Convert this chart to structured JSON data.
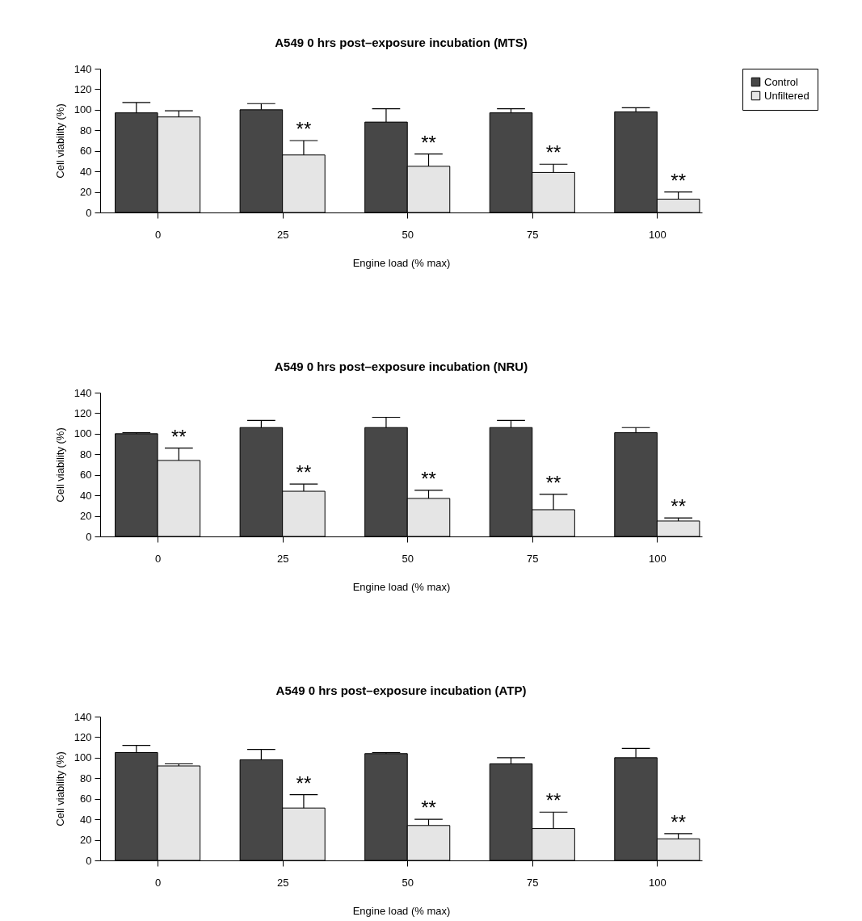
{
  "chart_data": [
    {
      "type": "bar",
      "title": "A549 0 hrs post–exposure incubation (MTS)",
      "xlabel": "Engine load (% max)",
      "ylabel": "Cell viability (%)",
      "categories": [
        "0",
        "25",
        "50",
        "75",
        "100"
      ],
      "ylim": [
        0,
        140
      ],
      "yticks": [
        0,
        20,
        40,
        60,
        80,
        100,
        120,
        140
      ],
      "legend": "right",
      "grid": false,
      "series": [
        {
          "name": "Control",
          "color": "#474747",
          "values": [
            97,
            100,
            88,
            97,
            98
          ],
          "errors": [
            [
              97,
              107
            ],
            [
              100,
              106
            ],
            [
              88,
              101
            ],
            [
              97,
              101
            ],
            [
              98,
              102
            ]
          ]
        },
        {
          "name": "Unfiltered",
          "color": "#e5e5e5",
          "values": [
            93,
            56,
            45,
            39,
            13
          ],
          "errors": [
            [
              93,
              99
            ],
            [
              56,
              70
            ],
            [
              45,
              57
            ],
            [
              39,
              47
            ],
            [
              13,
              20
            ]
          ]
        }
      ],
      "annotations": [
        {
          "text": "**",
          "x": "25",
          "y": 70
        },
        {
          "text": "**",
          "x": "50",
          "y": 57
        },
        {
          "text": "**",
          "x": "75",
          "y": 47
        },
        {
          "text": "**",
          "x": "100",
          "y": 20
        }
      ]
    },
    {
      "type": "bar",
      "title": "A549 0 hrs post–exposure incubation (NRU)",
      "xlabel": "Engine load (% max)",
      "ylabel": "Cell viability (%)",
      "categories": [
        "0",
        "25",
        "50",
        "75",
        "100"
      ],
      "ylim": [
        0,
        140
      ],
      "yticks": [
        0,
        20,
        40,
        60,
        80,
        100,
        120,
        140
      ],
      "legend": "right",
      "grid": false,
      "series": [
        {
          "name": "Control",
          "color": "#474747",
          "values": [
            100,
            106,
            106,
            106,
            101
          ],
          "errors": [
            [
              100,
              101
            ],
            [
              106,
              113
            ],
            [
              106,
              116
            ],
            [
              106,
              113
            ],
            [
              101,
              106
            ]
          ]
        },
        {
          "name": "Unfiltered",
          "color": "#e5e5e5",
          "values": [
            74,
            44,
            37,
            26,
            15
          ],
          "errors": [
            [
              74,
              86
            ],
            [
              44,
              51
            ],
            [
              37,
              45
            ],
            [
              26,
              41
            ],
            [
              15,
              18
            ]
          ]
        }
      ],
      "annotations": [
        {
          "text": "**",
          "x": "0",
          "y": 86
        },
        {
          "text": "**",
          "x": "25",
          "y": 51
        },
        {
          "text": "**",
          "x": "50",
          "y": 45
        },
        {
          "text": "**",
          "x": "75",
          "y": 41
        },
        {
          "text": "**",
          "x": "100",
          "y": 18
        }
      ]
    },
    {
      "type": "bar",
      "title": "A549 0 hrs post–exposure incubation (ATP)",
      "xlabel": "Engine load (% max)",
      "ylabel": "Cell viability (%)",
      "categories": [
        "0",
        "25",
        "50",
        "75",
        "100"
      ],
      "ylim": [
        0,
        140
      ],
      "yticks": [
        0,
        20,
        40,
        60,
        80,
        100,
        120,
        140
      ],
      "legend": "right",
      "grid": false,
      "series": [
        {
          "name": "Control",
          "color": "#474747",
          "values": [
            105,
            98,
            104,
            94,
            100
          ],
          "errors": [
            [
              105,
              112
            ],
            [
              98,
              108
            ],
            [
              104,
              105
            ],
            [
              94,
              100
            ],
            [
              100,
              109
            ]
          ]
        },
        {
          "name": "Unfiltered",
          "color": "#e5e5e5",
          "values": [
            92,
            51,
            34,
            31,
            21
          ],
          "errors": [
            [
              92,
              94
            ],
            [
              51,
              64
            ],
            [
              34,
              40
            ],
            [
              31,
              47
            ],
            [
              21,
              26
            ]
          ]
        }
      ],
      "annotations": [
        {
          "text": "**",
          "x": "25",
          "y": 64
        },
        {
          "text": "**",
          "x": "50",
          "y": 40
        },
        {
          "text": "**",
          "x": "75",
          "y": 47
        },
        {
          "text": "**",
          "x": "100",
          "y": 26
        }
      ]
    }
  ]
}
